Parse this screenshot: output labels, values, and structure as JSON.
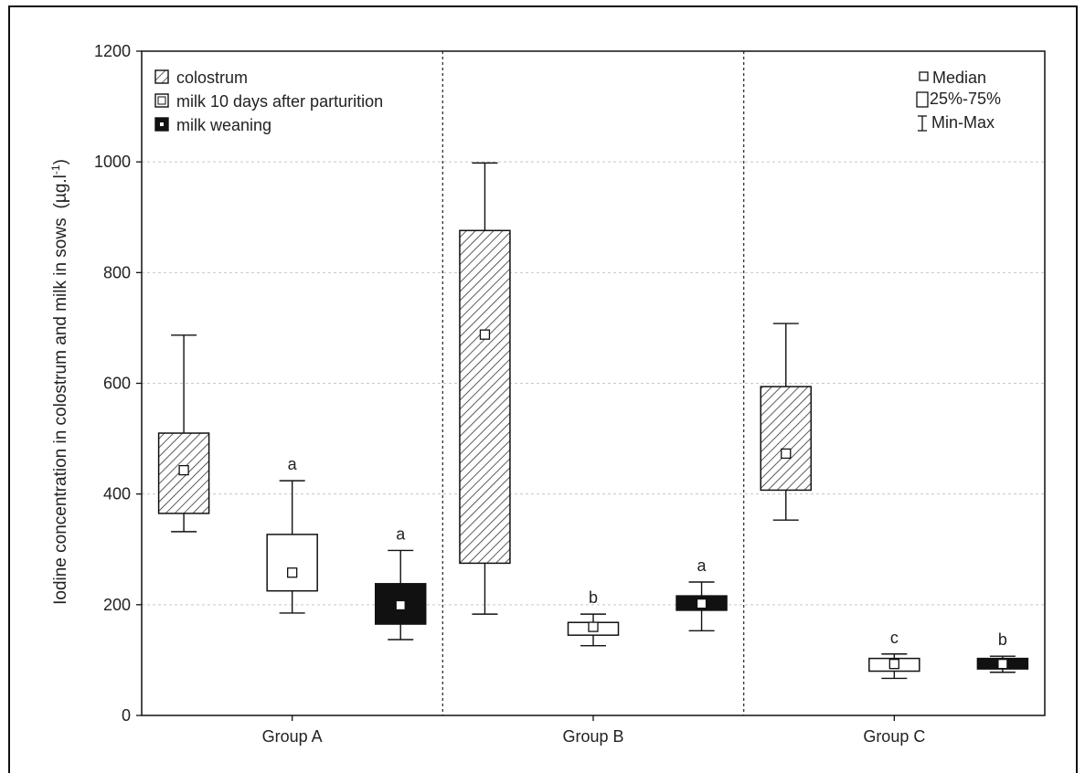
{
  "chart_data": {
    "type": "box",
    "ylabel": "Iodine concentration in colostrum and milk in sows",
    "yunit": "(µg.l",
    "yunit_sup": "-1",
    "yunit_close": ")",
    "ylim": [
      0,
      1200
    ],
    "yticks": [
      "0",
      "200",
      "400",
      "600",
      "800",
      "1000",
      "1200"
    ],
    "grid": "horizontal dashed",
    "categories": [
      "Group A",
      "Group B",
      "Group C"
    ],
    "series": [
      {
        "name": "colostrum",
        "fill": "hatched",
        "color": "#111111"
      },
      {
        "name": "milk 10 days after parturition",
        "fill": "white",
        "color": "#111111"
      },
      {
        "name": "milk weaning",
        "fill": "black",
        "color": "#111111"
      }
    ],
    "legend_stats": [
      "Median",
      "25%-75%",
      "Min-Max"
    ],
    "boxes": [
      {
        "group": "Group A",
        "series": "colostrum",
        "min": 332,
        "q1": 365,
        "median": 443,
        "q3": 510,
        "max": 687,
        "label": ""
      },
      {
        "group": "Group A",
        "series": "milk 10 days after parturition",
        "min": 185,
        "q1": 225,
        "median": 258,
        "q3": 327,
        "max": 424,
        "label": "a"
      },
      {
        "group": "Group A",
        "series": "milk weaning",
        "min": 137,
        "q1": 165,
        "median": 199,
        "q3": 238,
        "max": 298,
        "label": "a"
      },
      {
        "group": "Group B",
        "series": "colostrum",
        "min": 183,
        "q1": 275,
        "median": 688,
        "q3": 876,
        "max": 998,
        "label": ""
      },
      {
        "group": "Group B",
        "series": "milk 10 days after parturition",
        "min": 126,
        "q1": 145,
        "median": 160,
        "q3": 168,
        "max": 183,
        "label": "b"
      },
      {
        "group": "Group B",
        "series": "milk weaning",
        "min": 153,
        "q1": 190,
        "median": 202,
        "q3": 216,
        "max": 241,
        "label": "a"
      },
      {
        "group": "Group C",
        "series": "colostrum",
        "min": 353,
        "q1": 407,
        "median": 473,
        "q3": 594,
        "max": 708,
        "label": ""
      },
      {
        "group": "Group C",
        "series": "milk 10 days after parturition",
        "min": 67,
        "q1": 80,
        "median": 93,
        "q3": 103,
        "max": 111,
        "label": "c"
      },
      {
        "group": "Group C",
        "series": "milk weaning",
        "min": 78,
        "q1": 84,
        "median": 93,
        "q3": 103,
        "max": 107,
        "label": "b"
      }
    ]
  }
}
